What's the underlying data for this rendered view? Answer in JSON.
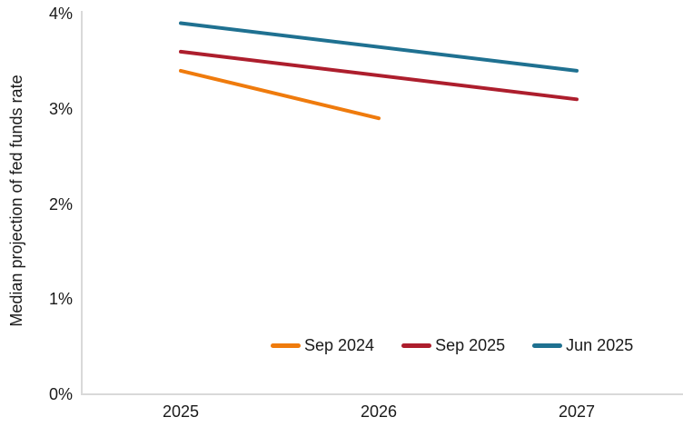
{
  "chart_data": {
    "type": "line",
    "title": "",
    "ylabel": "Median projection of fed funds rate",
    "xlabel": "",
    "x_ticks": [
      "2025",
      "2026",
      "2027"
    ],
    "x_years": [
      2025,
      2026,
      2027
    ],
    "y_ticks": [
      "0%",
      "1%",
      "2%",
      "3%",
      "4%"
    ],
    "ylim": [
      0,
      4
    ],
    "grid": false,
    "legend_position": "bottom-inside",
    "background": "#FFFFFF",
    "axis_color": "#D9D9D9",
    "text_color": "#1A1A1A",
    "series": [
      {
        "name": "Sep 2024",
        "color": "#EF7B0D",
        "points": [
          [
            2025,
            3.4
          ],
          [
            2026,
            2.9
          ]
        ]
      },
      {
        "name": "Sep 2025",
        "color": "#AD1E2D",
        "points": [
          [
            2025,
            3.6
          ],
          [
            2027,
            3.1
          ]
        ]
      },
      {
        "name": "Jun 2025",
        "color": "#1F7191",
        "points": [
          [
            2025,
            3.9
          ],
          [
            2027,
            3.4
          ]
        ]
      }
    ]
  }
}
